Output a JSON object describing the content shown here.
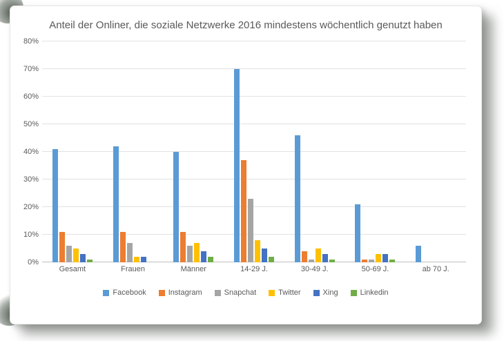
{
  "chart_data": {
    "type": "bar",
    "title": "Anteil der Onliner, die soziale Netzwerke 2016 mindestens wöchentlich genutzt haben",
    "categories": [
      "Gesamt",
      "Frauen",
      "Männer",
      "14-29 J.",
      "30-49 J.",
      "50-69 J.",
      "ab 70 J."
    ],
    "series": [
      {
        "name": "Facebook",
        "color": "#5B9BD5",
        "values": [
          41,
          42,
          40,
          70,
          46,
          21,
          6
        ]
      },
      {
        "name": "Instagram",
        "color": "#ED7D31",
        "values": [
          11,
          11,
          11,
          37,
          4,
          1,
          0
        ]
      },
      {
        "name": "Snapchat",
        "color": "#A5A5A5",
        "values": [
          6,
          7,
          6,
          23,
          1,
          1,
          0
        ]
      },
      {
        "name": "Twitter",
        "color": "#FFC000",
        "values": [
          5,
          2,
          7,
          8,
          5,
          3,
          0
        ]
      },
      {
        "name": "Xing",
        "color": "#4472C4",
        "values": [
          3,
          2,
          4,
          5,
          3,
          3,
          0
        ]
      },
      {
        "name": "Linkedin",
        "color": "#70AD47",
        "values": [
          1,
          0,
          2,
          2,
          1,
          1,
          0
        ]
      }
    ],
    "ylim": [
      0,
      80
    ],
    "yticks": [
      {
        "value": 0,
        "label": "0%"
      },
      {
        "value": 10,
        "label": "10%"
      },
      {
        "value": 20,
        "label": "20%"
      },
      {
        "value": 30,
        "label": "30%"
      },
      {
        "value": 40,
        "label": "40%"
      },
      {
        "value": 50,
        "label": "50%"
      },
      {
        "value": 60,
        "label": "60%"
      },
      {
        "value": 70,
        "label": "70%"
      },
      {
        "value": 80,
        "label": "80%"
      }
    ],
    "grid": true,
    "legend_position": "bottom",
    "text_color": "#595959"
  }
}
